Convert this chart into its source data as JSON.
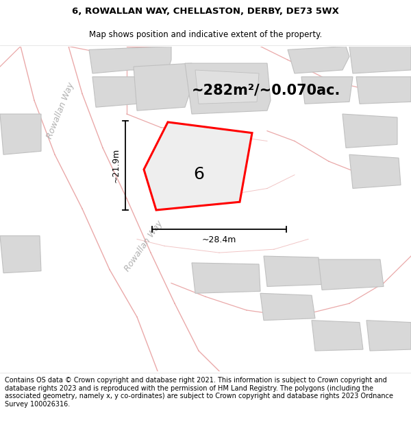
{
  "title_line1": "6, ROWALLAN WAY, CHELLASTON, DERBY, DE73 5WX",
  "title_line2": "Map shows position and indicative extent of the property.",
  "area_label": "~282m²/~0.070ac.",
  "plot_number": "6",
  "dim_width": "~28.4m",
  "dim_height": "~21.9m",
  "road_label_upper": "Rowallan Way",
  "road_label_lower": "Rowallan Way",
  "footer_text": "Contains OS data © Crown copyright and database right 2021. This information is subject to Crown copyright and database rights 2023 and is reproduced with the permission of HM Land Registry. The polygons (including the associated geometry, namely x, y co-ordinates) are subject to Crown copyright and database rights 2023 Ordnance Survey 100026316.",
  "map_bg": "#f2f2f2",
  "plot_fill": "#e8e8e8",
  "plot_edge": "#ff0000",
  "road_line_color": "#e8a0a0",
  "building_fill": "#d8d8d8",
  "building_edge": "#c0c0c0",
  "road_label_color": "#b0b0b0",
  "title_fontsize": 9.5,
  "subtitle_fontsize": 8.5,
  "area_fontsize": 15,
  "number_fontsize": 18,
  "dim_fontsize": 9,
  "road_fontsize": 9,
  "footer_fontsize": 7,
  "plot_linewidth": 2.2
}
